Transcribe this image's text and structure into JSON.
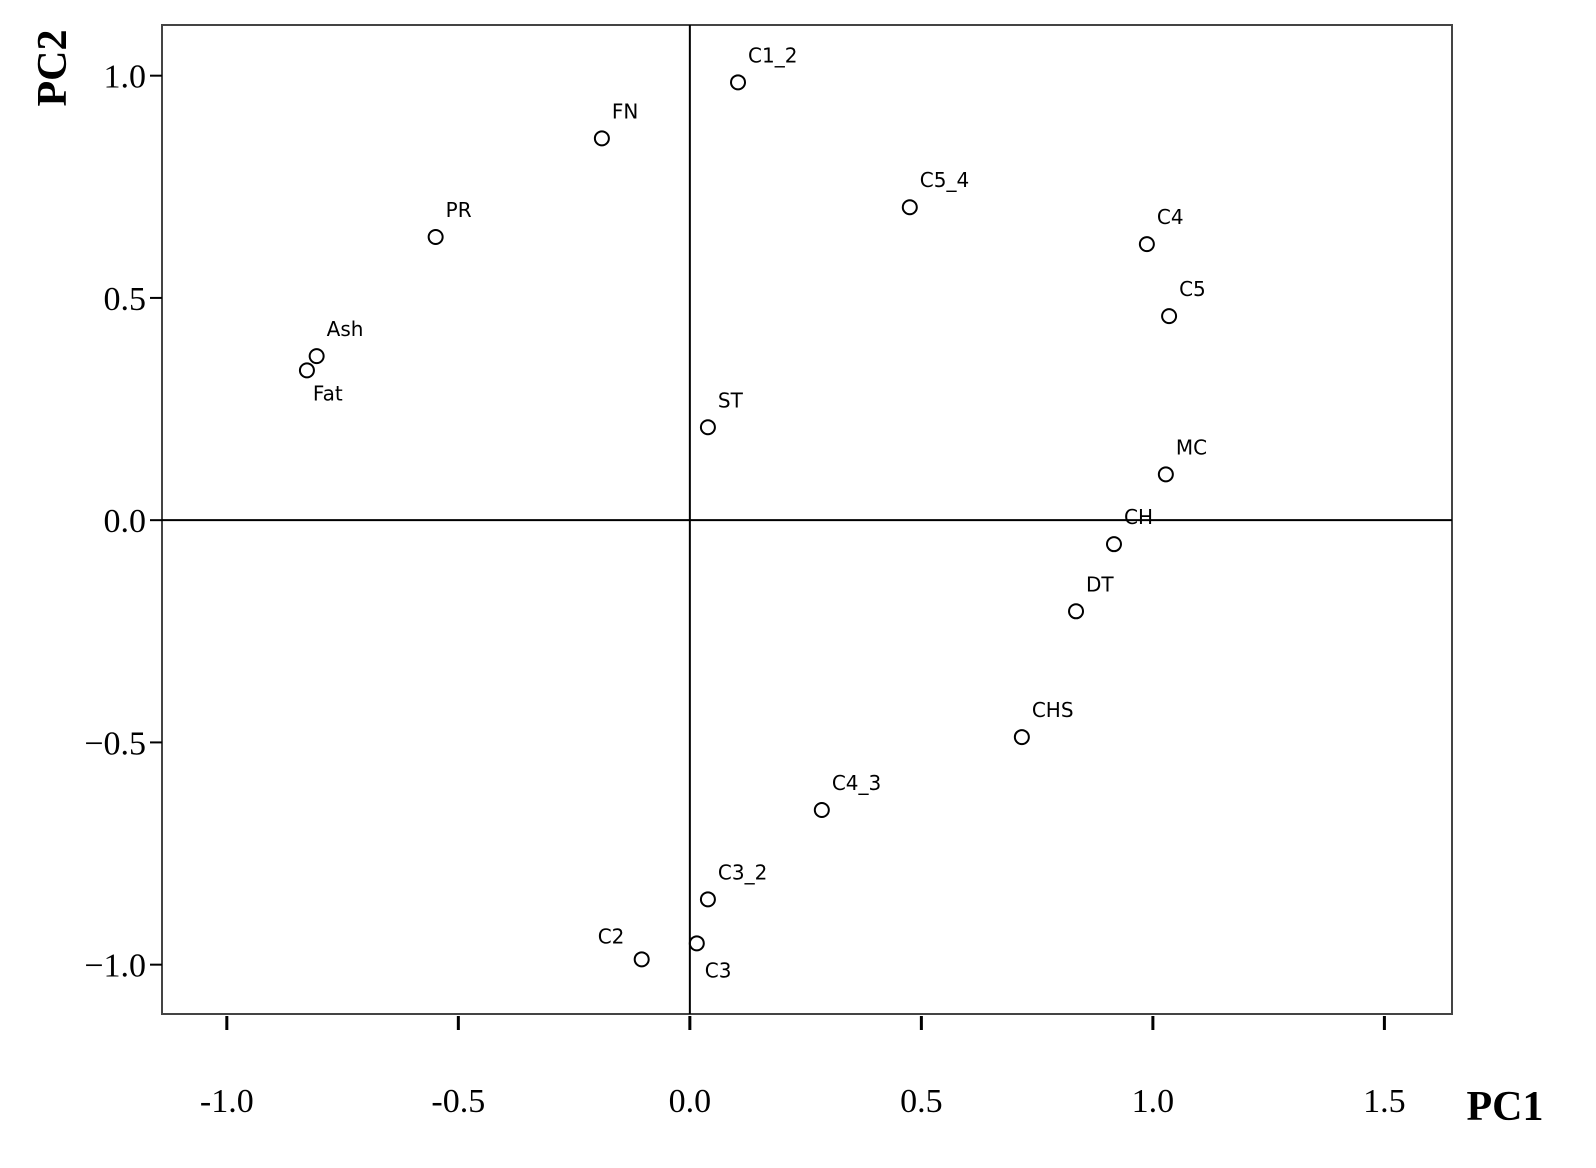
{
  "chart_data": {
    "type": "scatter",
    "x_label": "PC1",
    "y_label": "PC2",
    "xlim": [
      -1.14,
      1.646
    ],
    "ylim": [
      -1.111,
      1.114
    ],
    "xticks": [
      {
        "value": -1.0,
        "label": "-1.0"
      },
      {
        "value": -0.5,
        "label": "-0.5"
      },
      {
        "value": 0.0,
        "label": "0.0"
      },
      {
        "value": 0.5,
        "label": "0.5"
      },
      {
        "value": 1.0,
        "label": "1.0"
      },
      {
        "value": 1.5,
        "label": "1.5"
      }
    ],
    "yticks": [
      {
        "value": 1.0,
        "label": "1.0"
      },
      {
        "value": 0.5,
        "label": "0.5"
      },
      {
        "value": 0.0,
        "label": "0.0"
      },
      {
        "value": -0.5,
        "label": "−0.5"
      },
      {
        "value": -1.0,
        "label": "−1.0"
      }
    ],
    "labels": [
      "C1_2",
      "FN",
      "C5_4",
      "PR",
      "C4",
      "C5",
      "Ash",
      "Fat",
      "ST",
      "MC",
      "CH",
      "DT",
      "CHS",
      "C4_3",
      "C3_2",
      "C3",
      "C2"
    ],
    "x": [
      0.104,
      -0.19,
      0.475,
      -0.549,
      0.987,
      1.035,
      -0.806,
      -0.827,
      0.039,
      1.028,
      0.916,
      0.834,
      0.717,
      0.285,
      0.039,
      0.015,
      -0.104
    ],
    "y": [
      0.985,
      0.859,
      0.704,
      0.637,
      0.621,
      0.459,
      0.369,
      0.337,
      0.209,
      0.103,
      -0.054,
      -0.205,
      -0.488,
      -0.652,
      -0.853,
      -0.952,
      -0.988
    ],
    "color": "#000000"
  }
}
